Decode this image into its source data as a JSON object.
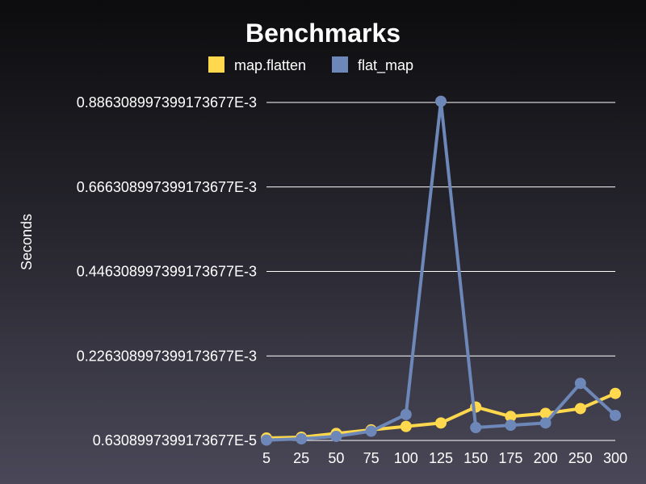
{
  "chart_data": {
    "type": "line",
    "title": "Benchmarks",
    "xlabel": "",
    "ylabel": "Seconds",
    "categories": [
      "5",
      "25",
      "50",
      "75",
      "100",
      "125",
      "150",
      "175",
      "200",
      "250",
      "300"
    ],
    "y_ticks": [
      6.308997399173677e-06,
      0.00022630899739917368,
      0.0004463089973991737,
      0.0006663089973991737,
      0.0008863089973991737
    ],
    "y_tick_labels": [
      "0.6308997399173677E-5",
      "0.226308997399173677E-3",
      "0.446308997399173677E-3",
      "0.666308997399173677E-3",
      "0.886308997399173677E-3"
    ],
    "ylim": [
      6.308997399173677e-06,
      0.0008863089973991737
    ],
    "grid": true,
    "legend_position": "top",
    "series": [
      {
        "name": "map.flatten",
        "color": "#ffd84d",
        "values": [
          1.25e-05,
          1.48e-05,
          2.44e-05,
          3.38e-05,
          4.28e-05,
          5.18e-05,
          9.33e-05,
          6.87e-05,
          7.67e-05,
          8.93e-05,
          0.0001287
        ]
      },
      {
        "name": "flat_map",
        "color": "#6d87b8",
        "values": [
          7.2e-06,
          1.05e-05,
          1.69e-05,
          3.04e-05,
          7.38e-05,
          0.0008893,
          3.98e-05,
          4.59e-05,
          5.18e-05,
          0.0001549,
          7.13e-05
        ]
      }
    ]
  }
}
